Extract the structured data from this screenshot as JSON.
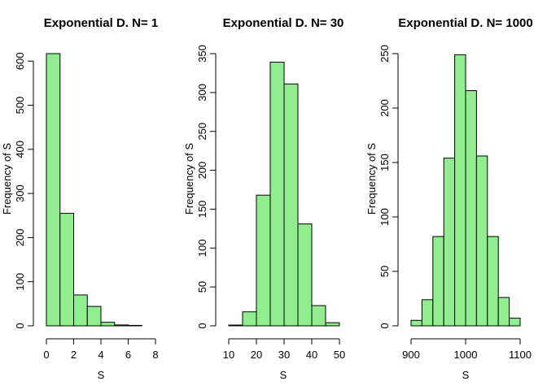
{
  "colors": {
    "bar_fill": "#90EE90",
    "bar_stroke": "#000000",
    "axis": "#000000",
    "background": "#ffffff"
  },
  "chart_data": [
    {
      "type": "bar",
      "title": "Exponential D. N= 1",
      "xlabel": "S",
      "ylabel": "Frequency of S",
      "bin_edges": [
        0,
        1,
        2,
        3,
        4,
        5,
        6,
        7,
        8
      ],
      "values": [
        617,
        255,
        70,
        44,
        8,
        2,
        1,
        0
      ],
      "xlim": [
        0,
        8
      ],
      "ylim": [
        0,
        617
      ],
      "xticks": [
        0,
        2,
        4,
        6,
        8
      ],
      "yticks": [
        0,
        100,
        200,
        300,
        400,
        500,
        600
      ],
      "grid": false
    },
    {
      "type": "bar",
      "title": "Exponential D. N= 30",
      "xlabel": "S",
      "ylabel": "Frequency of S",
      "bin_edges": [
        10,
        15,
        20,
        25,
        30,
        35,
        40,
        45,
        50
      ],
      "values": [
        1,
        18,
        168,
        339,
        311,
        131,
        26,
        4
      ],
      "xlim": [
        10,
        50
      ],
      "ylim": [
        0,
        350
      ],
      "xticks": [
        10,
        20,
        30,
        40,
        50
      ],
      "yticks": [
        0,
        50,
        100,
        150,
        200,
        250,
        300,
        350
      ],
      "grid": false
    },
    {
      "type": "bar",
      "title": "Exponential D. N= 1000",
      "xlabel": "S",
      "ylabel": "Frequency of S",
      "bin_edges": [
        900,
        920,
        940,
        960,
        980,
        1000,
        1020,
        1040,
        1060,
        1080,
        1100
      ],
      "values": [
        5,
        24,
        82,
        154,
        249,
        216,
        156,
        82,
        26,
        7
      ],
      "xlim": [
        900,
        1100
      ],
      "ylim": [
        0,
        250
      ],
      "xticks": [
        900,
        1000,
        1100
      ],
      "yticks": [
        0,
        50,
        100,
        150,
        200,
        250
      ],
      "grid": false
    }
  ]
}
